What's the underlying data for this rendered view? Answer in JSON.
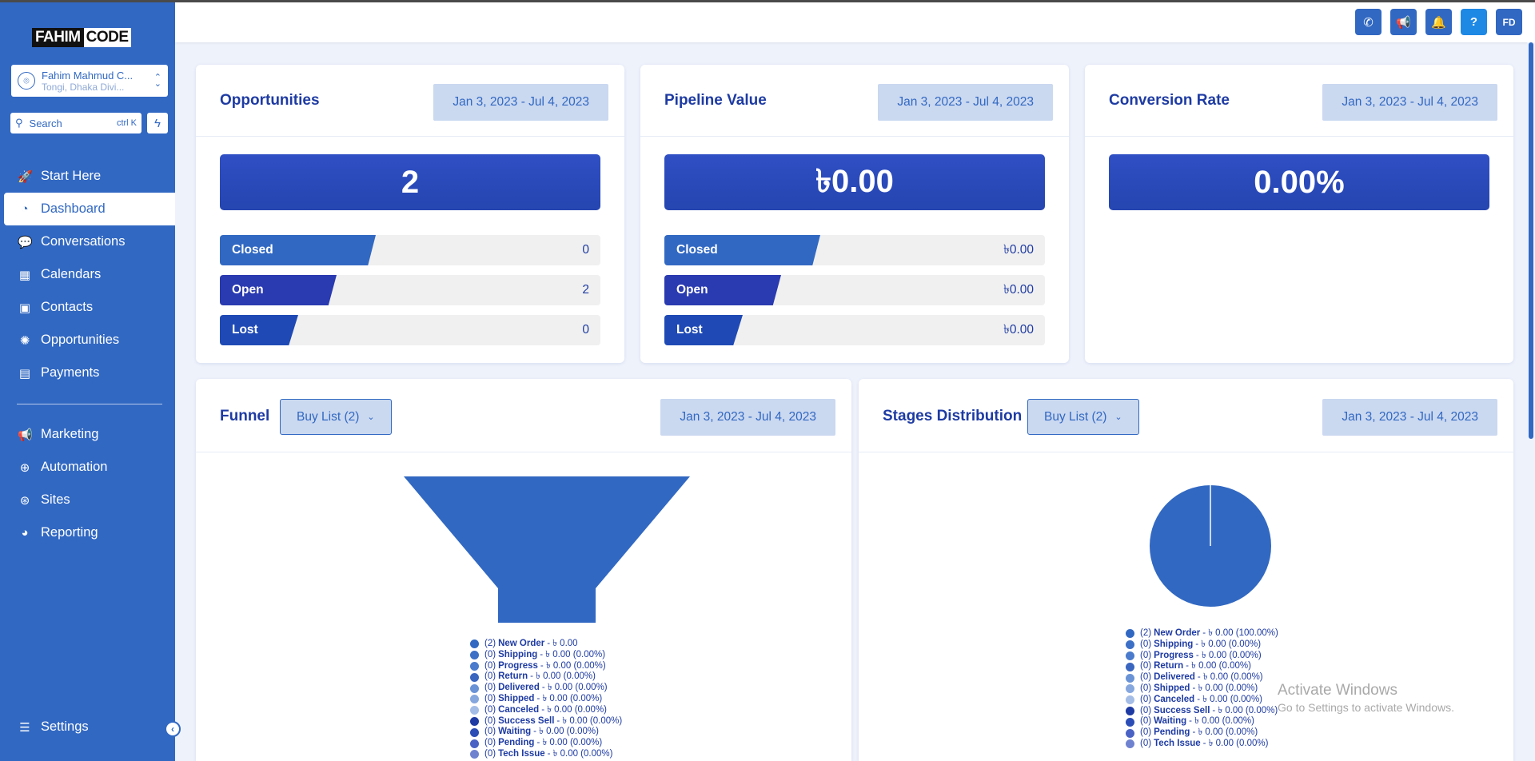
{
  "brand": {
    "logo_part1": "FAHIM",
    "logo_part2": "CODE"
  },
  "account": {
    "name": "Fahim Mahmud C...",
    "location": "Tongi, Dhaka Divi..."
  },
  "search": {
    "placeholder": "Search",
    "shortcut": "ctrl K"
  },
  "nav": {
    "items": [
      {
        "label": "Start Here",
        "icon": "rocket-icon"
      },
      {
        "label": "Dashboard",
        "icon": "gauge-icon"
      },
      {
        "label": "Conversations",
        "icon": "chat-icon"
      },
      {
        "label": "Calendars",
        "icon": "calendar-icon"
      },
      {
        "label": "Contacts",
        "icon": "contacts-icon"
      },
      {
        "label": "Opportunities",
        "icon": "lightbulb-icon"
      },
      {
        "label": "Payments",
        "icon": "receipt-icon"
      }
    ],
    "items2": [
      {
        "label": "Marketing",
        "icon": "megaphone-icon"
      },
      {
        "label": "Automation",
        "icon": "robot-icon"
      },
      {
        "label": "Sites",
        "icon": "globe-icon"
      },
      {
        "label": "Reporting",
        "icon": "pie-icon"
      }
    ],
    "settings": "Settings"
  },
  "header": {
    "avatar_initials": "FD"
  },
  "opportunities": {
    "title": "Opportunities",
    "date_range": "Jan 3, 2023 - Jul 4, 2023",
    "total": "2",
    "rows": [
      {
        "label": "Closed",
        "value": "0"
      },
      {
        "label": "Open",
        "value": "2"
      },
      {
        "label": "Lost",
        "value": "0"
      }
    ]
  },
  "pipeline": {
    "title": "Pipeline Value",
    "date_range": "Jan 3, 2023 - Jul 4, 2023",
    "total": "৳0.00",
    "rows": [
      {
        "label": "Closed",
        "value": "৳0.00"
      },
      {
        "label": "Open",
        "value": "৳0.00"
      },
      {
        "label": "Lost",
        "value": "৳0.00"
      }
    ]
  },
  "conversion": {
    "title": "Conversion Rate",
    "date_range": "Jan 3, 2023 - Jul 4, 2023",
    "total": "0.00%"
  },
  "funnel": {
    "title": "Funnel",
    "dropdown": "Buy List (2)",
    "date_range": "Jan 3, 2023 - Jul 4, 2023",
    "legend": [
      {
        "count": "(2)",
        "name": "New Order",
        "rest": " - ৳ 0.00",
        "color": "#3168c2"
      },
      {
        "count": "(0)",
        "name": "Shipping",
        "rest": " - ৳ 0.00 (0.00%)",
        "color": "#3c6fc6"
      },
      {
        "count": "(0)",
        "name": "Progress",
        "rest": " - ৳ 0.00 (0.00%)",
        "color": "#4a7bcc"
      },
      {
        "count": "(0)",
        "name": "Return",
        "rest": " - ৳ 0.00 (0.00%)",
        "color": "#3a66c0"
      },
      {
        "count": "(0)",
        "name": "Delivered",
        "rest": " - ৳ 0.00 (0.00%)",
        "color": "#6a93d6"
      },
      {
        "count": "(0)",
        "name": "Shipped",
        "rest": " - ৳ 0.00 (0.00%)",
        "color": "#86a7de"
      },
      {
        "count": "(0)",
        "name": "Canceled",
        "rest": " - ৳ 0.00 (0.00%)",
        "color": "#a4bde6"
      },
      {
        "count": "(0)",
        "name": "Success Sell",
        "rest": " - ৳ 0.00 (0.00%)",
        "color": "#1e3ba3"
      },
      {
        "count": "(0)",
        "name": "Waiting",
        "rest": " - ৳ 0.00 (0.00%)",
        "color": "#2b4db5"
      },
      {
        "count": "(0)",
        "name": "Pending",
        "rest": " - ৳ 0.00 (0.00%)",
        "color": "#4a62c4"
      },
      {
        "count": "(0)",
        "name": "Tech Issue",
        "rest": " - ৳ 0.00 (0.00%)",
        "color": "#6f82d0"
      }
    ]
  },
  "stages": {
    "title": "Stages Distribution",
    "dropdown": "Buy List (2)",
    "date_range": "Jan 3, 2023 - Jul 4, 2023",
    "legend": [
      {
        "count": "(2)",
        "name": "New Order",
        "rest": " - ৳ 0.00 (100.00%)",
        "color": "#3168c2"
      },
      {
        "count": "(0)",
        "name": "Shipping",
        "rest": " - ৳ 0.00 (0.00%)",
        "color": "#3c6fc6"
      },
      {
        "count": "(0)",
        "name": "Progress",
        "rest": " - ৳ 0.00 (0.00%)",
        "color": "#4a7bcc"
      },
      {
        "count": "(0)",
        "name": "Return",
        "rest": " - ৳ 0.00 (0.00%)",
        "color": "#3a66c0"
      },
      {
        "count": "(0)",
        "name": "Delivered",
        "rest": " - ৳ 0.00 (0.00%)",
        "color": "#6a93d6"
      },
      {
        "count": "(0)",
        "name": "Shipped",
        "rest": " - ৳ 0.00 (0.00%)",
        "color": "#86a7de"
      },
      {
        "count": "(0)",
        "name": "Canceled",
        "rest": " - ৳ 0.00 (0.00%)",
        "color": "#a4bde6"
      },
      {
        "count": "(0)",
        "name": "Success Sell",
        "rest": " - ৳ 0.00 (0.00%)",
        "color": "#1e3ba3"
      },
      {
        "count": "(0)",
        "name": "Waiting",
        "rest": " - ৳ 0.00 (0.00%)",
        "color": "#2b4db5"
      },
      {
        "count": "(0)",
        "name": "Pending",
        "rest": " - ৳ 0.00 (0.00%)",
        "color": "#4a62c4"
      },
      {
        "count": "(0)",
        "name": "Tech Issue",
        "rest": " - ৳ 0.00 (0.00%)",
        "color": "#6f82d0"
      }
    ]
  },
  "watermark": {
    "line1": "Activate Windows",
    "line2": "Go to Settings to activate Windows."
  }
}
